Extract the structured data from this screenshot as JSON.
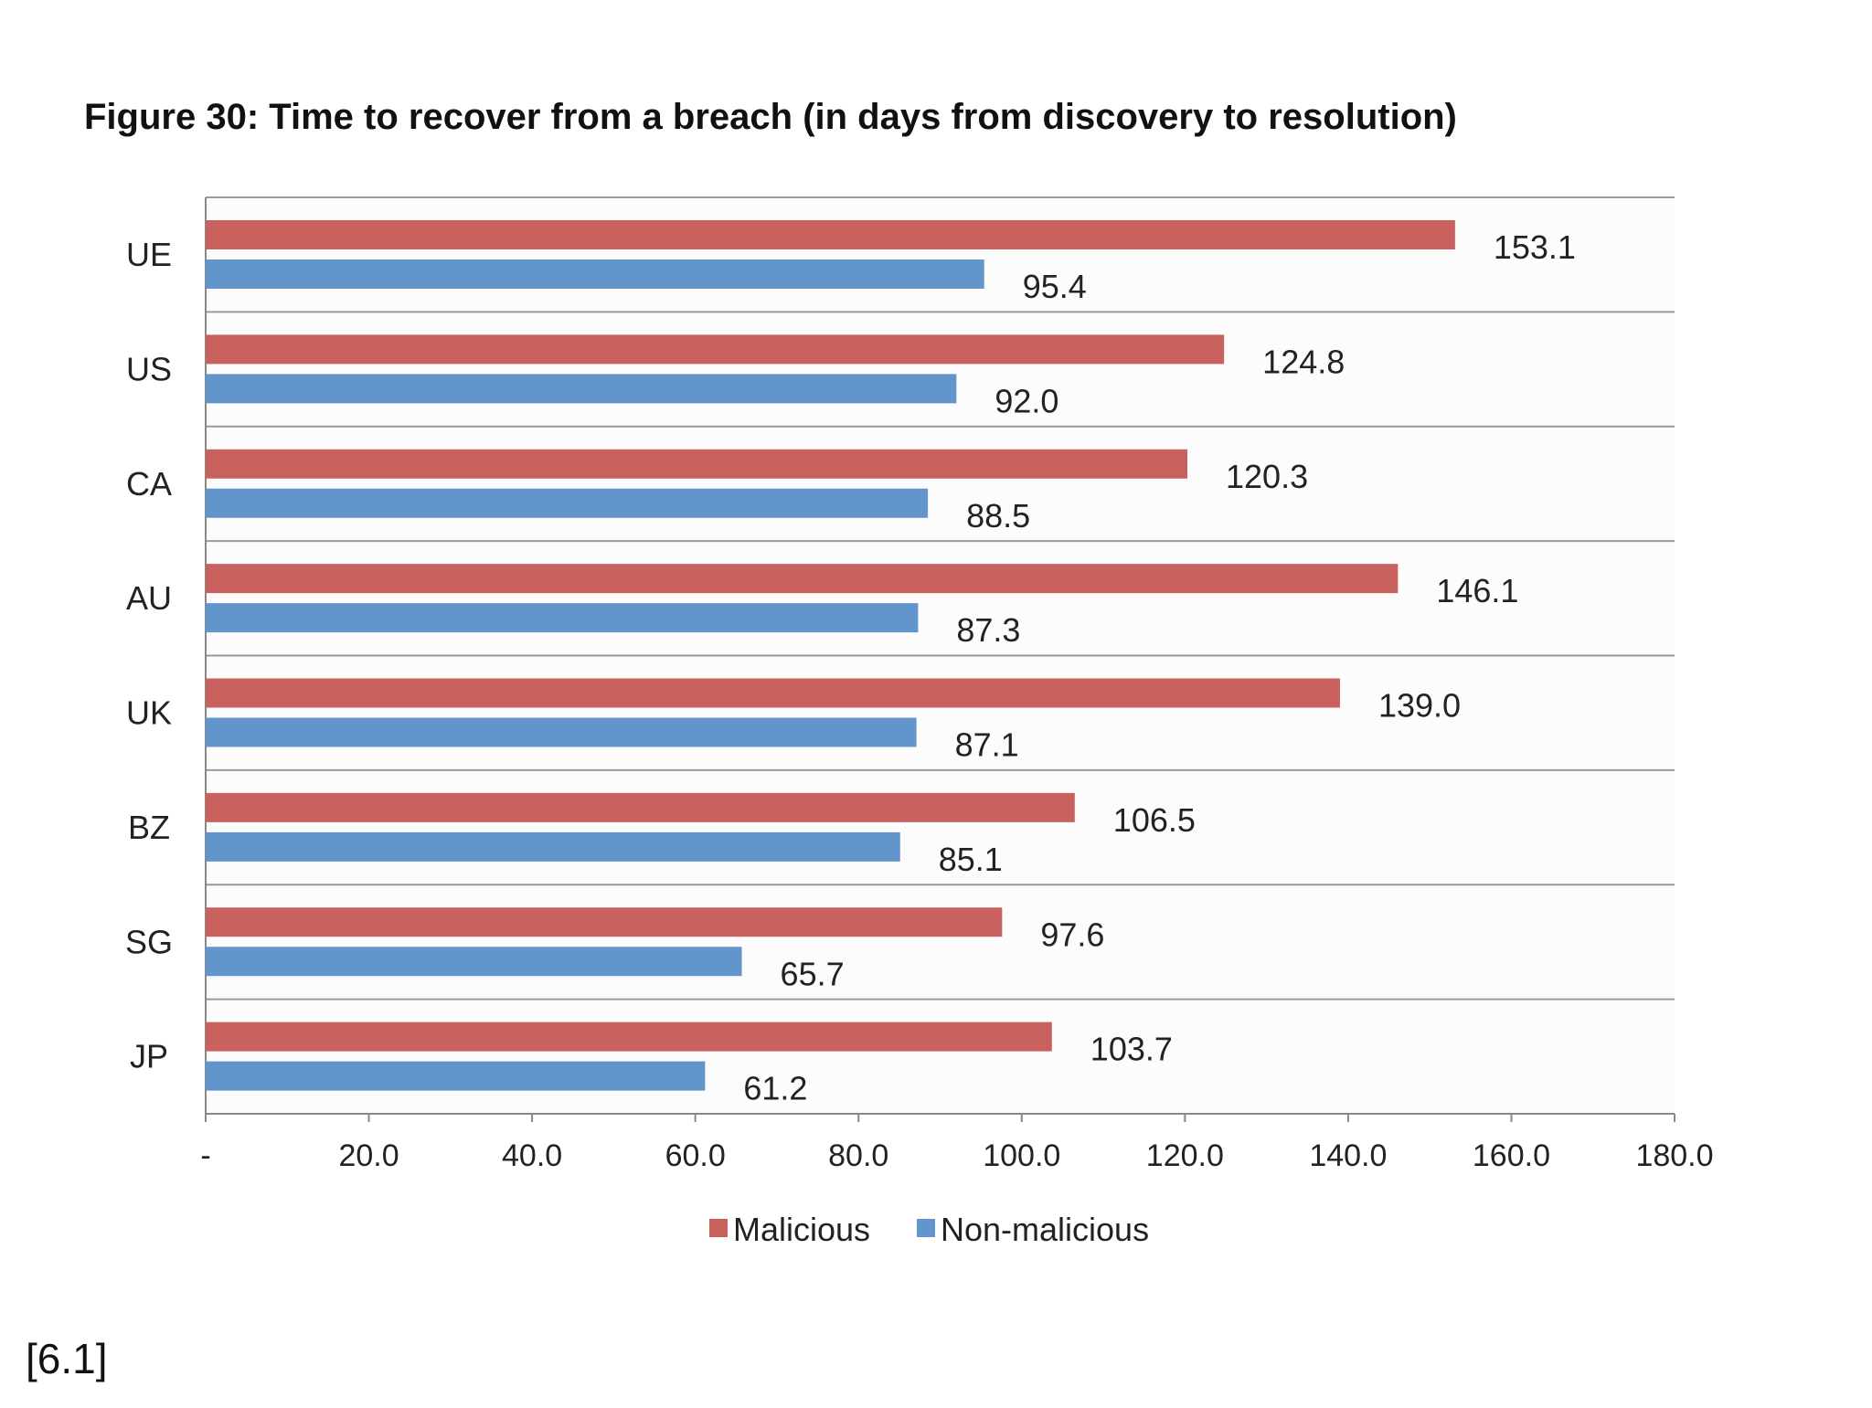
{
  "chart_data": {
    "type": "bar",
    "orientation": "horizontal",
    "title": "Figure 30: Time to recover from a breach (in days from discovery to resolution)",
    "categories": [
      "UE",
      "US",
      "CA",
      "AU",
      "UK",
      "BZ",
      "SG",
      "JP"
    ],
    "series": [
      {
        "name": "Malicious",
        "color": "#c9625e",
        "values": [
          153.1,
          124.8,
          120.3,
          146.1,
          139.0,
          106.5,
          97.6,
          103.7
        ],
        "labels": [
          "153.1",
          "124.8",
          "120.3",
          "146.1",
          "139.0",
          "106.5",
          "97.6",
          "103.7"
        ]
      },
      {
        "name": "Non-malicious",
        "color": "#6295cb",
        "values": [
          95.4,
          92.0,
          88.5,
          87.3,
          87.1,
          85.1,
          65.7,
          61.2
        ],
        "labels": [
          "95.4",
          "92.0",
          "88.5",
          "87.3",
          "87.1",
          "85.1",
          "65.7",
          "61.2"
        ]
      }
    ],
    "xlim": [
      0,
      180
    ],
    "xticks": [
      0,
      20,
      40,
      60,
      80,
      100,
      120,
      140,
      160,
      180
    ],
    "xtick_labels": [
      "-",
      "20.0",
      "40.0",
      "60.0",
      "80.0",
      "100.0",
      "120.0",
      "140.0",
      "160.0",
      "180.0"
    ],
    "xlabel": "",
    "ylabel": "",
    "legend_position": "bottom",
    "grid": "horizontal category separators"
  },
  "footnote": "[6.1]"
}
